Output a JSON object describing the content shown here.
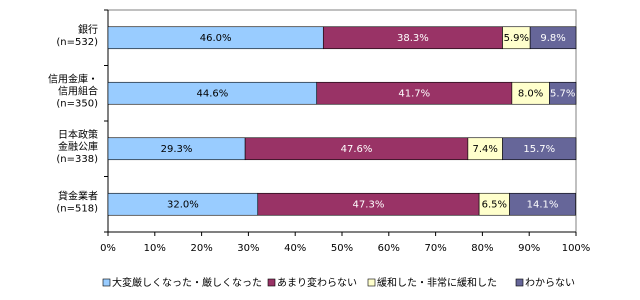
{
  "chart_data": {
    "type": "stacked-bar-horizontal",
    "categories": [
      [
        "銀行",
        "(n=532)"
      ],
      [
        "信用金庫・",
        "信用組合",
        "(n=350)"
      ],
      [
        "日本政策",
        "金融公庫",
        "(n=338)"
      ],
      [
        "貸金業者",
        "(n=518)"
      ]
    ],
    "series": [
      {
        "name": "大変厳しくなった・厳しくなった",
        "color": "#99ccff",
        "values": [
          46.0,
          44.6,
          29.3,
          32.0
        ],
        "value_labels": [
          "46.0%",
          "44.6%",
          "29.3%",
          "32.0%"
        ]
      },
      {
        "name": "あまり変わらない",
        "color": "#993366",
        "values": [
          38.3,
          41.7,
          47.6,
          47.3
        ],
        "value_labels": [
          "38.3%",
          "41.7%",
          "47.6%",
          "47.3%"
        ]
      },
      {
        "name": "緩和した・非常に緩和した",
        "color": "#ffffcc",
        "values": [
          5.9,
          8.0,
          7.4,
          6.5
        ],
        "value_labels": [
          "5.9%",
          "8.0%",
          "7.4%",
          "6.5%"
        ]
      },
      {
        "name": "わからない",
        "color": "#666699",
        "values": [
          9.8,
          5.7,
          15.7,
          14.1
        ],
        "value_labels": [
          "9.8%",
          "5.7%",
          "15.7%",
          "14.1%"
        ]
      }
    ],
    "xlim": [
      0,
      100
    ],
    "xticks": [
      {
        "value": 0,
        "label": "0%"
      },
      {
        "value": 10,
        "label": "10%"
      },
      {
        "value": 20,
        "label": "20%"
      },
      {
        "value": 30,
        "label": "30%"
      },
      {
        "value": 40,
        "label": "40%"
      },
      {
        "value": 50,
        "label": "50%"
      },
      {
        "value": 60,
        "label": "60%"
      },
      {
        "value": 70,
        "label": "70%"
      },
      {
        "value": 80,
        "label": "80%"
      },
      {
        "value": 90,
        "label": "90%"
      },
      {
        "value": 100,
        "label": "100%"
      }
    ],
    "legend": "bottom"
  }
}
